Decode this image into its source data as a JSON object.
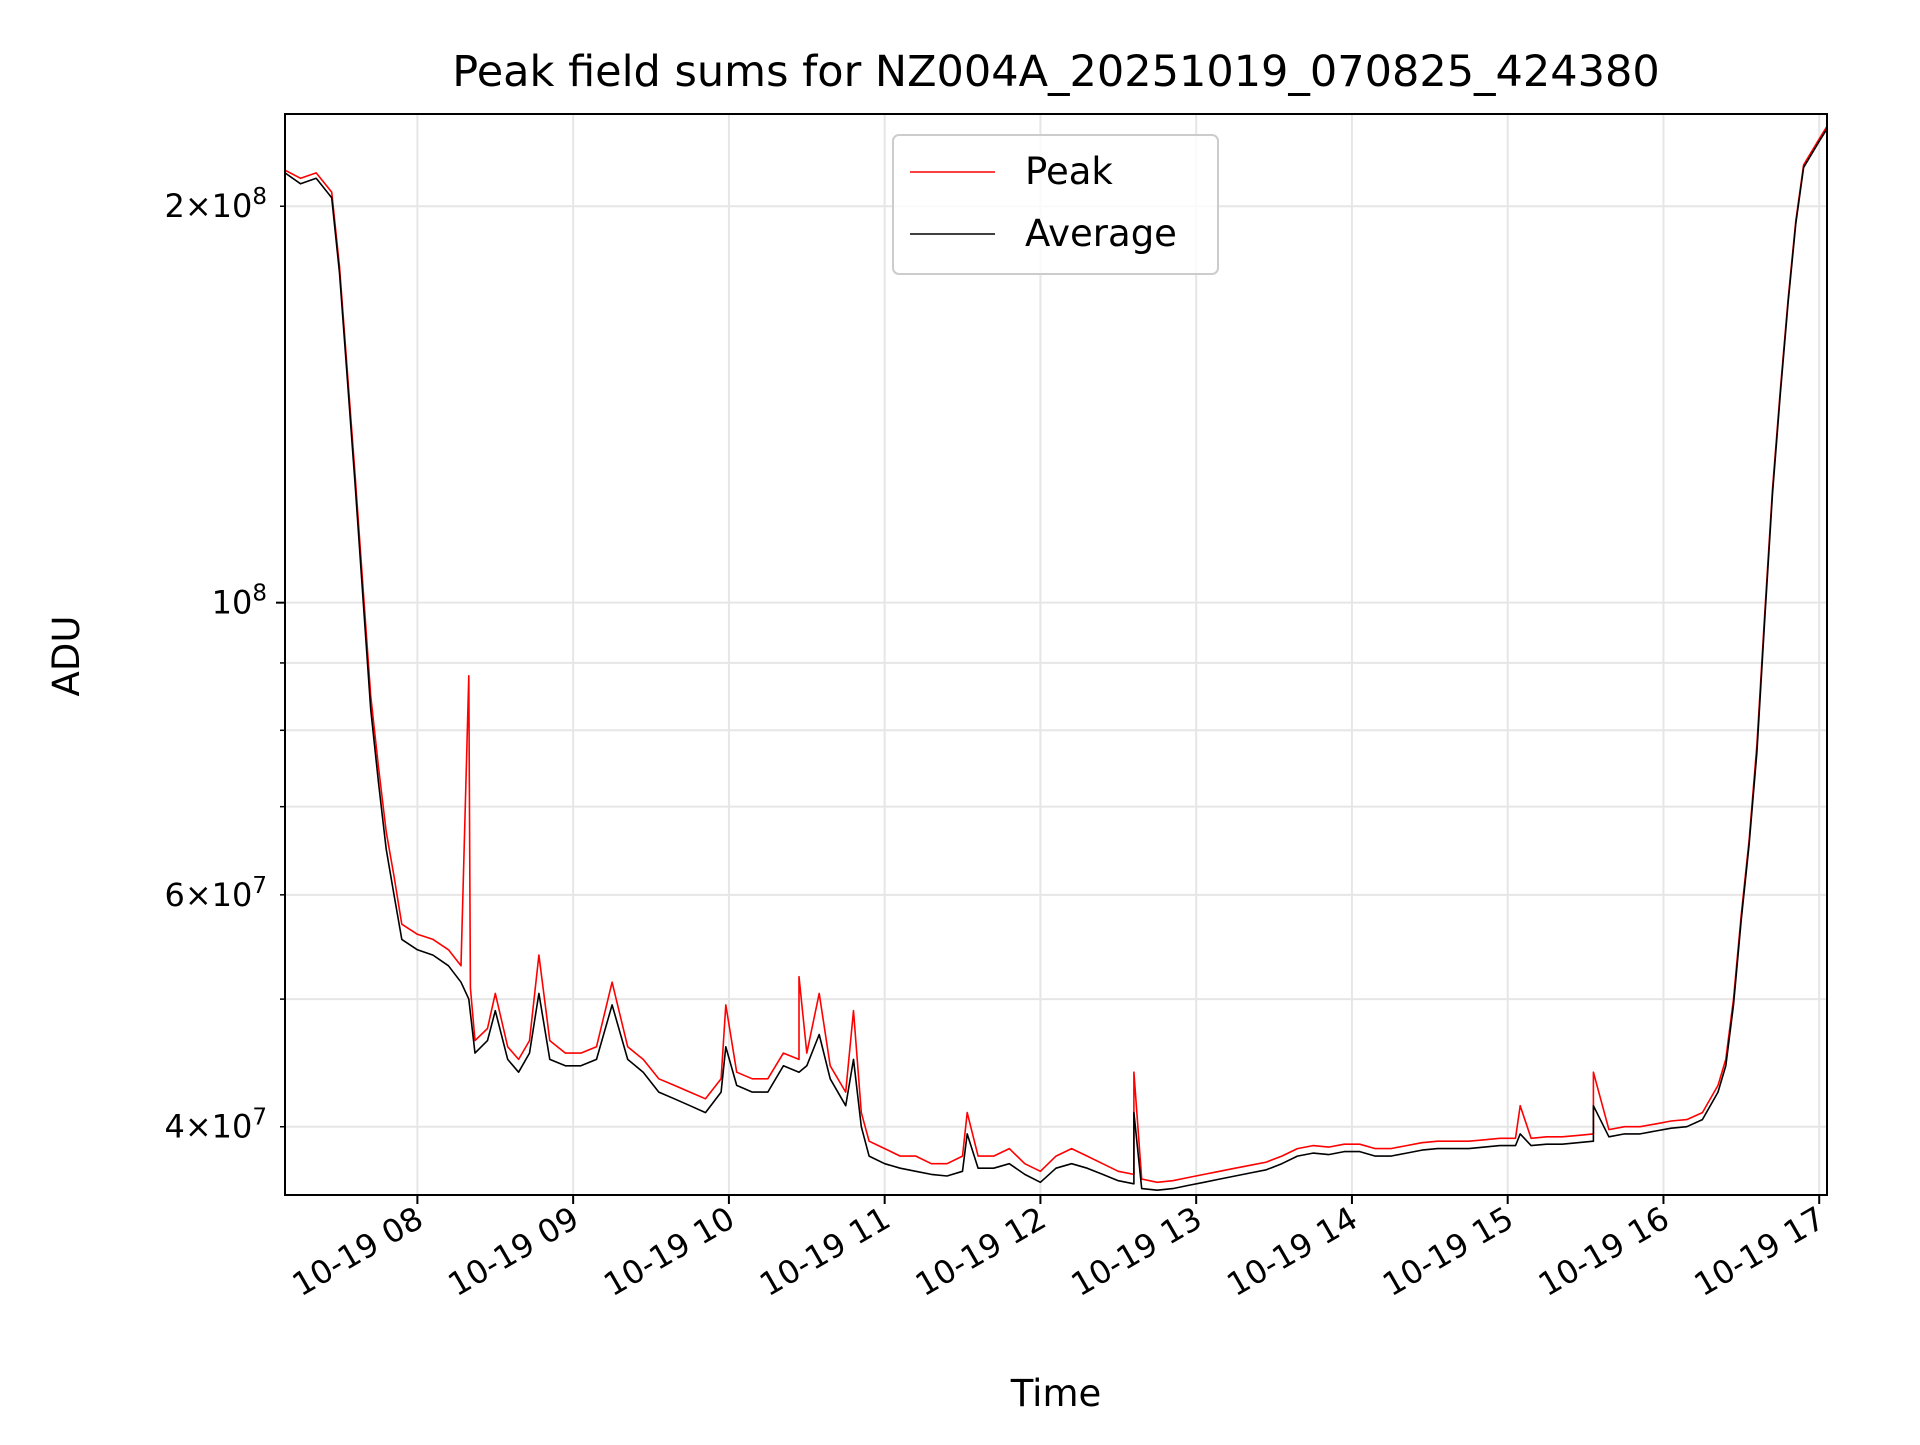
{
  "chart_data": {
    "type": "line",
    "title": "Peak field sums for NZ004A_20251019_070825_424380",
    "xlabel": "Time",
    "ylabel": "ADU",
    "yscale": "log",
    "xlim": [
      7.15,
      17.05
    ],
    "ylim": [
      35500000,
      235000000
    ],
    "x_ticks": [
      {
        "value": 8,
        "label": "10-19 08"
      },
      {
        "value": 9,
        "label": "10-19 09"
      },
      {
        "value": 10,
        "label": "10-19 10"
      },
      {
        "value": 11,
        "label": "10-19 11"
      },
      {
        "value": 12,
        "label": "10-19 12"
      },
      {
        "value": 13,
        "label": "10-19 13"
      },
      {
        "value": 14,
        "label": "10-19 14"
      },
      {
        "value": 15,
        "label": "10-19 15"
      },
      {
        "value": 16,
        "label": "10-19 16"
      },
      {
        "value": 17,
        "label": "10-19 17"
      }
    ],
    "y_major_ticks": [
      {
        "value": 100000000,
        "base": "10",
        "exp": "8"
      }
    ],
    "y_minor_ticks": [
      {
        "value": 40000000,
        "mantissa": "4",
        "base": "10",
        "exp": "7"
      },
      {
        "value": 60000000,
        "mantissa": "6",
        "base": "10",
        "exp": "7"
      },
      {
        "value": 200000000,
        "mantissa": "2",
        "base": "10",
        "exp": "8"
      }
    ],
    "y_unlabeled_minor": [
      50000000,
      70000000,
      80000000,
      90000000
    ],
    "grid": true,
    "legend": {
      "position": "top-center",
      "entries": [
        "Peak",
        "Average"
      ]
    },
    "series": [
      {
        "name": "Peak",
        "color": "#ff0000",
        "points": [
          [
            7.15,
            213000000
          ],
          [
            7.25,
            210000000
          ],
          [
            7.35,
            212000000
          ],
          [
            7.45,
            205000000
          ],
          [
            7.5,
            180000000
          ],
          [
            7.55,
            150000000
          ],
          [
            7.6,
            125000000
          ],
          [
            7.65,
            103000000
          ],
          [
            7.7,
            85000000
          ],
          [
            7.75,
            75000000
          ],
          [
            7.8,
            67000000
          ],
          [
            7.85,
            62000000
          ],
          [
            7.9,
            57000000
          ],
          [
            8.0,
            56000000
          ],
          [
            8.1,
            55500000
          ],
          [
            8.2,
            54500000
          ],
          [
            8.28,
            53000000
          ],
          [
            8.33,
            88000000
          ],
          [
            8.34,
            51000000
          ],
          [
            8.37,
            46500000
          ],
          [
            8.45,
            47500000
          ],
          [
            8.5,
            50500000
          ],
          [
            8.58,
            46000000
          ],
          [
            8.65,
            45000000
          ],
          [
            8.72,
            46500000
          ],
          [
            8.78,
            54000000
          ],
          [
            8.85,
            46500000
          ],
          [
            8.95,
            45500000
          ],
          [
            9.05,
            45500000
          ],
          [
            9.15,
            46000000
          ],
          [
            9.25,
            51500000
          ],
          [
            9.35,
            46000000
          ],
          [
            9.45,
            45000000
          ],
          [
            9.55,
            43500000
          ],
          [
            9.65,
            43000000
          ],
          [
            9.75,
            42500000
          ],
          [
            9.85,
            42000000
          ],
          [
            9.95,
            43500000
          ],
          [
            9.98,
            49500000
          ],
          [
            10.05,
            44000000
          ],
          [
            10.15,
            43500000
          ],
          [
            10.25,
            43500000
          ],
          [
            10.35,
            45500000
          ],
          [
            10.45,
            45000000
          ],
          [
            10.45,
            52000000
          ],
          [
            10.5,
            45500000
          ],
          [
            10.58,
            50500000
          ],
          [
            10.65,
            44500000
          ],
          [
            10.75,
            42500000
          ],
          [
            10.8,
            49000000
          ],
          [
            10.85,
            41000000
          ],
          [
            10.9,
            39000000
          ],
          [
            11.0,
            38500000
          ],
          [
            11.1,
            38000000
          ],
          [
            11.2,
            38000000
          ],
          [
            11.3,
            37500000
          ],
          [
            11.4,
            37500000
          ],
          [
            11.5,
            38000000
          ],
          [
            11.53,
            41000000
          ],
          [
            11.6,
            38000000
          ],
          [
            11.7,
            38000000
          ],
          [
            11.8,
            38500000
          ],
          [
            11.9,
            37500000
          ],
          [
            12.0,
            37000000
          ],
          [
            12.1,
            38000000
          ],
          [
            12.2,
            38500000
          ],
          [
            12.3,
            38000000
          ],
          [
            12.4,
            37500000
          ],
          [
            12.5,
            37000000
          ],
          [
            12.6,
            36800000
          ],
          [
            12.6,
            44000000
          ],
          [
            12.65,
            36500000
          ],
          [
            12.75,
            36300000
          ],
          [
            12.85,
            36400000
          ],
          [
            12.95,
            36600000
          ],
          [
            13.05,
            36800000
          ],
          [
            13.15,
            37000000
          ],
          [
            13.25,
            37200000
          ],
          [
            13.35,
            37400000
          ],
          [
            13.45,
            37600000
          ],
          [
            13.55,
            38000000
          ],
          [
            13.65,
            38500000
          ],
          [
            13.75,
            38700000
          ],
          [
            13.85,
            38600000
          ],
          [
            13.95,
            38800000
          ],
          [
            14.05,
            38800000
          ],
          [
            14.15,
            38500000
          ],
          [
            14.25,
            38500000
          ],
          [
            14.35,
            38700000
          ],
          [
            14.45,
            38900000
          ],
          [
            14.55,
            39000000
          ],
          [
            14.65,
            39000000
          ],
          [
            14.75,
            39000000
          ],
          [
            14.85,
            39100000
          ],
          [
            14.95,
            39200000
          ],
          [
            15.05,
            39200000
          ],
          [
            15.08,
            41500000
          ],
          [
            15.15,
            39200000
          ],
          [
            15.25,
            39300000
          ],
          [
            15.35,
            39300000
          ],
          [
            15.45,
            39400000
          ],
          [
            15.55,
            39500000
          ],
          [
            15.55,
            44000000
          ],
          [
            15.65,
            39800000
          ],
          [
            15.75,
            40000000
          ],
          [
            15.85,
            40000000
          ],
          [
            15.95,
            40200000
          ],
          [
            16.05,
            40400000
          ],
          [
            16.15,
            40500000
          ],
          [
            16.25,
            41000000
          ],
          [
            16.35,
            43000000
          ],
          [
            16.4,
            45000000
          ],
          [
            16.45,
            50000000
          ],
          [
            16.5,
            58000000
          ],
          [
            16.55,
            66000000
          ],
          [
            16.6,
            78000000
          ],
          [
            16.65,
            98000000
          ],
          [
            16.7,
            122000000
          ],
          [
            16.75,
            145000000
          ],
          [
            16.8,
            170000000
          ],
          [
            16.85,
            195000000
          ],
          [
            16.9,
            215000000
          ],
          [
            17.0,
            225000000
          ],
          [
            17.05,
            230000000
          ]
        ]
      },
      {
        "name": "Average",
        "color": "#000000",
        "points": [
          [
            7.15,
            212000000
          ],
          [
            7.25,
            208000000
          ],
          [
            7.35,
            210000000
          ],
          [
            7.45,
            203000000
          ],
          [
            7.5,
            178000000
          ],
          [
            7.55,
            148000000
          ],
          [
            7.6,
            123000000
          ],
          [
            7.65,
            101000000
          ],
          [
            7.7,
            83000000
          ],
          [
            7.75,
            73000000
          ],
          [
            7.8,
            65000000
          ],
          [
            7.85,
            60000000
          ],
          [
            7.9,
            55500000
          ],
          [
            8.0,
            54500000
          ],
          [
            8.1,
            54000000
          ],
          [
            8.2,
            53000000
          ],
          [
            8.28,
            51500000
          ],
          [
            8.33,
            50000000
          ],
          [
            8.37,
            45500000
          ],
          [
            8.45,
            46500000
          ],
          [
            8.5,
            49000000
          ],
          [
            8.58,
            45000000
          ],
          [
            8.65,
            44000000
          ],
          [
            8.72,
            45500000
          ],
          [
            8.78,
            50500000
          ],
          [
            8.85,
            45000000
          ],
          [
            8.95,
            44500000
          ],
          [
            9.05,
            44500000
          ],
          [
            9.15,
            45000000
          ],
          [
            9.25,
            49500000
          ],
          [
            9.35,
            45000000
          ],
          [
            9.45,
            44000000
          ],
          [
            9.55,
            42500000
          ],
          [
            9.65,
            42000000
          ],
          [
            9.75,
            41500000
          ],
          [
            9.85,
            41000000
          ],
          [
            9.95,
            42500000
          ],
          [
            9.98,
            46000000
          ],
          [
            10.05,
            43000000
          ],
          [
            10.15,
            42500000
          ],
          [
            10.25,
            42500000
          ],
          [
            10.35,
            44500000
          ],
          [
            10.45,
            44000000
          ],
          [
            10.5,
            44500000
          ],
          [
            10.58,
            47000000
          ],
          [
            10.65,
            43500000
          ],
          [
            10.75,
            41500000
          ],
          [
            10.8,
            45000000
          ],
          [
            10.85,
            40000000
          ],
          [
            10.9,
            38000000
          ],
          [
            11.0,
            37500000
          ],
          [
            11.1,
            37200000
          ],
          [
            11.2,
            37000000
          ],
          [
            11.3,
            36800000
          ],
          [
            11.4,
            36700000
          ],
          [
            11.5,
            37000000
          ],
          [
            11.53,
            39500000
          ],
          [
            11.6,
            37200000
          ],
          [
            11.7,
            37200000
          ],
          [
            11.8,
            37500000
          ],
          [
            11.9,
            36800000
          ],
          [
            12.0,
            36300000
          ],
          [
            12.1,
            37200000
          ],
          [
            12.2,
            37500000
          ],
          [
            12.3,
            37200000
          ],
          [
            12.4,
            36800000
          ],
          [
            12.5,
            36400000
          ],
          [
            12.6,
            36200000
          ],
          [
            12.6,
            41000000
          ],
          [
            12.65,
            35900000
          ],
          [
            12.75,
            35800000
          ],
          [
            12.85,
            35900000
          ],
          [
            12.95,
            36100000
          ],
          [
            13.05,
            36300000
          ],
          [
            13.15,
            36500000
          ],
          [
            13.25,
            36700000
          ],
          [
            13.35,
            36900000
          ],
          [
            13.45,
            37100000
          ],
          [
            13.55,
            37500000
          ],
          [
            13.65,
            38000000
          ],
          [
            13.75,
            38200000
          ],
          [
            13.85,
            38100000
          ],
          [
            13.95,
            38300000
          ],
          [
            14.05,
            38300000
          ],
          [
            14.15,
            38000000
          ],
          [
            14.25,
            38000000
          ],
          [
            14.35,
            38200000
          ],
          [
            14.45,
            38400000
          ],
          [
            14.55,
            38500000
          ],
          [
            14.65,
            38500000
          ],
          [
            14.75,
            38500000
          ],
          [
            14.85,
            38600000
          ],
          [
            14.95,
            38700000
          ],
          [
            15.05,
            38700000
          ],
          [
            15.08,
            39500000
          ],
          [
            15.15,
            38700000
          ],
          [
            15.25,
            38800000
          ],
          [
            15.35,
            38800000
          ],
          [
            15.45,
            38900000
          ],
          [
            15.55,
            39000000
          ],
          [
            15.55,
            41500000
          ],
          [
            15.65,
            39300000
          ],
          [
            15.75,
            39500000
          ],
          [
            15.85,
            39500000
          ],
          [
            15.95,
            39700000
          ],
          [
            16.05,
            39900000
          ],
          [
            16.15,
            40000000
          ],
          [
            16.25,
            40500000
          ],
          [
            16.35,
            42500000
          ],
          [
            16.4,
            44500000
          ],
          [
            16.45,
            49500000
          ],
          [
            16.5,
            57500000
          ],
          [
            16.55,
            65500000
          ],
          [
            16.6,
            77000000
          ],
          [
            16.65,
            97000000
          ],
          [
            16.7,
            121000000
          ],
          [
            16.75,
            144000000
          ],
          [
            16.8,
            169000000
          ],
          [
            16.85,
            194000000
          ],
          [
            16.9,
            214000000
          ],
          [
            17.0,
            224000000
          ],
          [
            17.05,
            229000000
          ]
        ]
      }
    ]
  }
}
